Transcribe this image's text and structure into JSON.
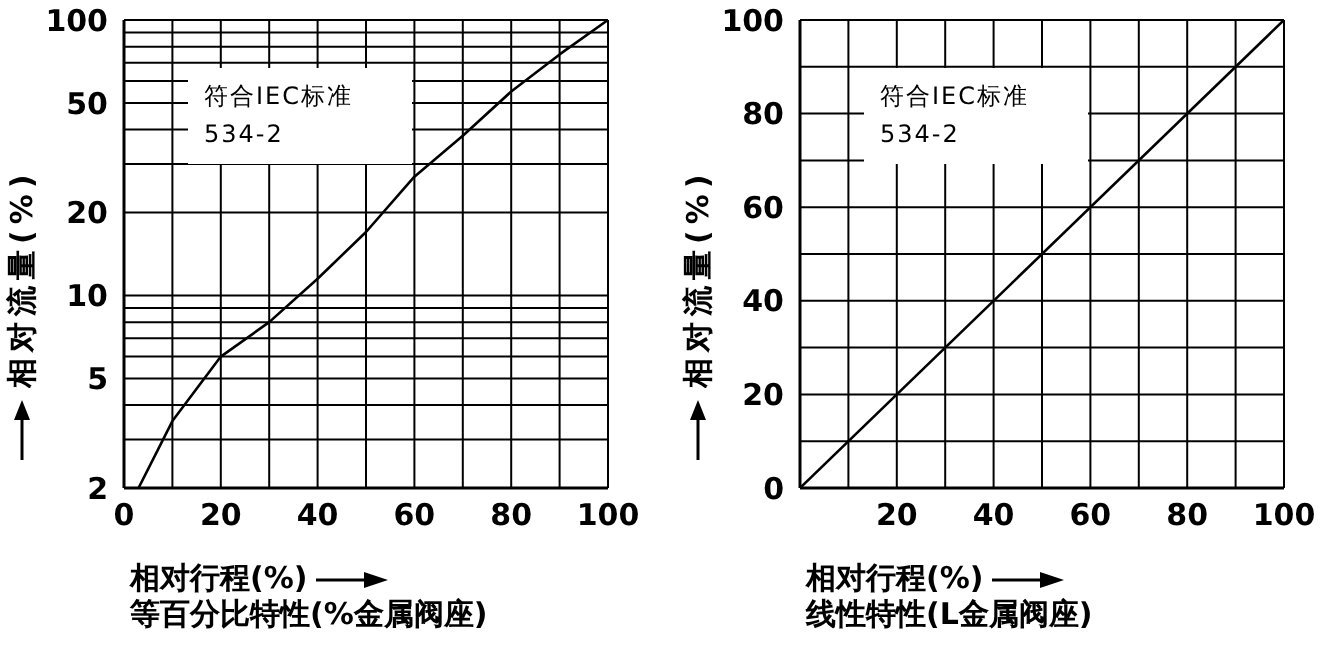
{
  "chart_data": [
    {
      "type": "line",
      "ylabel": "相对流量(%)",
      "xlabel": "相对行程(%)",
      "annotations": [
        "符合IEC标准",
        "534-2",
        "等百分比特性(%金属阀座)"
      ],
      "x": [
        3,
        10,
        20,
        30,
        40,
        50,
        60,
        70,
        80,
        90,
        100
      ],
      "series": [
        {
          "color": "#000000",
          "values": [
            2,
            3.5,
            6,
            8,
            11.5,
            17,
            27,
            38,
            55,
            75,
            100
          ]
        }
      ],
      "xlim": [
        0,
        100
      ],
      "xticks": [
        0,
        {
          "value": 10,
          "label": null
        },
        20,
        {
          "value": 30,
          "label": null
        },
        40,
        {
          "value": 50,
          "label": null
        },
        60,
        {
          "value": 70,
          "label": null
        },
        80,
        {
          "value": 90,
          "label": null
        },
        100
      ],
      "ylim": [
        2,
        100
      ],
      "yticks": [
        2,
        {
          "value": 3,
          "label": null
        },
        {
          "value": 4,
          "label": null
        },
        5,
        {
          "value": 6,
          "label": null
        },
        {
          "value": 7,
          "label": null
        },
        {
          "value": 8,
          "label": null
        },
        {
          "value": 9,
          "label": null
        },
        10,
        20,
        {
          "value": 30,
          "label": null
        },
        {
          "value": 40,
          "label": null
        },
        50,
        {
          "value": 60,
          "label": null
        },
        {
          "value": 70,
          "label": null
        },
        {
          "value": 80,
          "label": null
        },
        {
          "value": 90,
          "label": null
        },
        100
      ],
      "log": "y",
      "grid": true,
      "marker": "none"
    },
    {
      "type": "line",
      "ylabel": "相对流量(%)",
      "xlabel": "相对行程(%)",
      "annotations": [
        "符合IEC标准",
        "534-2",
        "线性特性(L金属阀座)"
      ],
      "x": [
        0,
        100
      ],
      "series": [
        {
          "color": "#000000",
          "values": [
            0,
            100
          ]
        }
      ],
      "xlim": [
        0,
        100
      ],
      "xticks": [
        {
          "value": 0,
          "label": null
        },
        {
          "value": 10,
          "label": null
        },
        20,
        {
          "value": 30,
          "label": null
        },
        40,
        {
          "value": 50,
          "label": null
        },
        60,
        {
          "value": 70,
          "label": null
        },
        80,
        {
          "value": 90,
          "label": null
        },
        100
      ],
      "ylim": [
        0,
        100
      ],
      "yticks": [
        0,
        {
          "value": 10,
          "label": null
        },
        20,
        {
          "value": 30,
          "label": null
        },
        40,
        {
          "value": 50,
          "label": null
        },
        60,
        {
          "value": 70,
          "label": null
        },
        80,
        {
          "value": 90,
          "label": null
        },
        100
      ],
      "grid": true,
      "marker": "none"
    }
  ]
}
